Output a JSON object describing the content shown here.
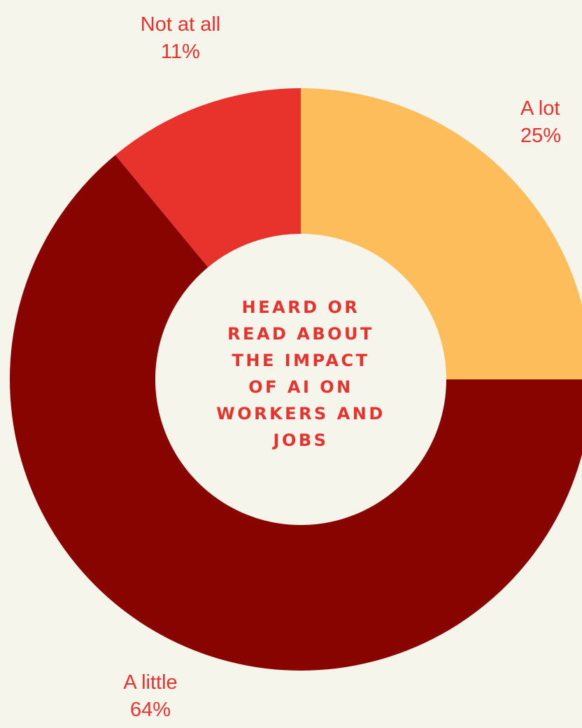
{
  "colors": {
    "background": "#f5f5ec",
    "a_lot": "#fdbd5a",
    "a_little": "#880400",
    "not_at_all": "#e8332d",
    "text": "#e8322d"
  },
  "center_title_lines": [
    "HEARD OR",
    "READ ABOUT",
    "THE IMPACT",
    "OF AI ON",
    "WORKERS AND",
    "JOBS"
  ],
  "chart_data": {
    "type": "pie",
    "donut": true,
    "title": "HEARD OR READ ABOUT THE IMPACT OF AI ON WORKERS AND JOBS",
    "categories": [
      "A lot",
      "A little",
      "Not at all"
    ],
    "values": [
      25,
      64,
      11
    ],
    "value_labels": [
      "25%",
      "64%",
      "11%"
    ],
    "colors": [
      "#fdbd5a",
      "#880400",
      "#e8332d"
    ]
  }
}
